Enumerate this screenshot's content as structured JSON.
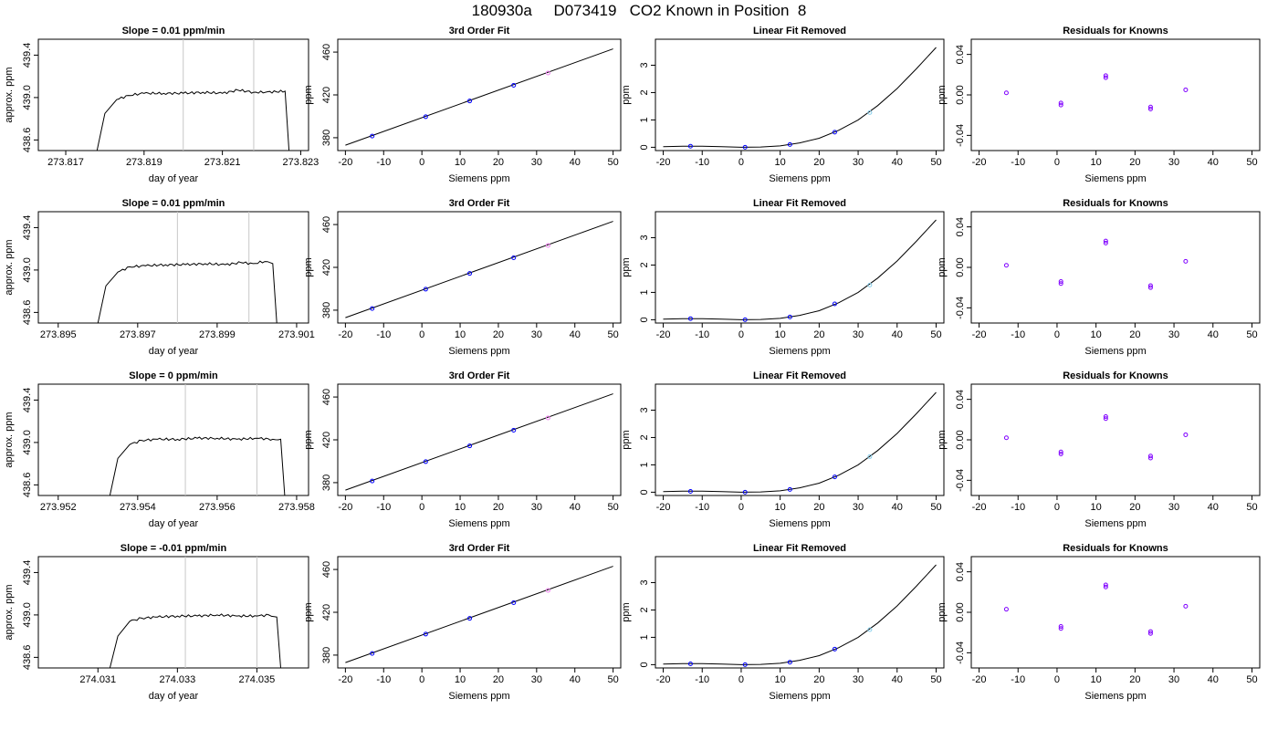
{
  "page": {
    "title": "180930a     D073419   CO2 Known in Position  8"
  },
  "colors": {
    "axis": "#000000",
    "curve": "#000000",
    "vline": "#c8c8c8",
    "point_main": "#0000ff",
    "point_alt": "#ee82ee",
    "point_light": "#87ceeb",
    "resid_point": "#7f00ff"
  },
  "chart_data": [
    {
      "type": "line",
      "row": 1,
      "panel": "timeseries",
      "title": "Slope =  0.01  ppm/min",
      "xlabel": "day of year",
      "ylabel": "approx. ppm",
      "xlim": [
        273.8163,
        273.8232
      ],
      "ylim": [
        438.5,
        439.55
      ],
      "xticks": [
        273.817,
        273.819,
        273.821,
        273.823
      ],
      "yticks": [
        438.6,
        439.0,
        439.4
      ],
      "vlines": [
        273.82,
        273.8218
      ],
      "x": [
        273.8178,
        273.818,
        273.8183,
        273.8186,
        273.819,
        273.8195,
        273.82,
        273.8205,
        273.821,
        273.8214,
        273.8218,
        273.8221,
        273.8226,
        273.8227
      ],
      "y": [
        438.5,
        438.85,
        438.98,
        439.02,
        439.04,
        439.04,
        439.04,
        439.05,
        439.04,
        439.07,
        439.05,
        439.05,
        439.06,
        438.5
      ]
    },
    {
      "type": "scatter",
      "row": 1,
      "panel": "fit",
      "title": "3rd Order Fit",
      "xlabel": "Siemens ppm",
      "ylabel": "ppm",
      "xlim": [
        -22,
        52
      ],
      "ylim": [
        368,
        472
      ],
      "xticks": [
        -20,
        -10,
        0,
        10,
        20,
        30,
        40,
        50
      ],
      "yticks": [
        380,
        420,
        460
      ],
      "line_x": [
        -20,
        50
      ],
      "line_y": [
        373,
        463
      ],
      "x": [
        -13,
        1,
        12.5,
        24,
        33
      ],
      "y": [
        381.5,
        399.6,
        414.3,
        429.0,
        440.5
      ]
    },
    {
      "type": "scatter",
      "row": 1,
      "panel": "linear_removed",
      "title": "Linear Fit Removed",
      "xlabel": "Siemens ppm",
      "ylabel": "ppm",
      "xlim": [
        -22,
        52
      ],
      "ylim": [
        -0.12,
        3.95
      ],
      "xticks": [
        -20,
        -10,
        0,
        10,
        20,
        30,
        40,
        50
      ],
      "yticks": [
        0,
        1,
        2,
        3
      ],
      "curve_x": [
        -20,
        -15,
        -10,
        -5,
        0,
        5,
        10,
        15,
        20,
        25,
        30,
        35,
        40,
        45,
        50
      ],
      "curve_y": [
        0.02,
        0.04,
        0.04,
        0.02,
        0.0,
        0.01,
        0.05,
        0.16,
        0.33,
        0.62,
        1.0,
        1.52,
        2.15,
        2.88,
        3.65
      ],
      "x": [
        -13,
        1,
        12.5,
        24,
        33
      ],
      "y": [
        0.04,
        0.0,
        0.1,
        0.55,
        1.27
      ]
    },
    {
      "type": "scatter",
      "row": 1,
      "panel": "residuals",
      "title": "Residuals for Knowns",
      "xlabel": "Siemens ppm",
      "ylabel": "ppm",
      "xlim": [
        -22,
        52
      ],
      "ylim": [
        -0.055,
        0.055
      ],
      "xticks": [
        -20,
        -10,
        0,
        10,
        20,
        30,
        40,
        50
      ],
      "yticks": [
        -0.04,
        0.0,
        0.04
      ],
      "x": [
        -13,
        1,
        1,
        12.5,
        12.5,
        24,
        24,
        33
      ],
      "y": [
        0.002,
        -0.008,
        -0.01,
        0.017,
        0.019,
        -0.012,
        -0.014,
        0.005
      ]
    },
    {
      "type": "line",
      "row": 2,
      "panel": "timeseries",
      "title": "Slope =  0.01  ppm/min",
      "xlabel": "day of year",
      "ylabel": "approx. ppm",
      "xlim": [
        273.8945,
        273.9013
      ],
      "ylim": [
        438.5,
        439.55
      ],
      "xticks": [
        273.895,
        273.897,
        273.899,
        273.901
      ],
      "yticks": [
        438.6,
        439.0,
        439.4
      ],
      "vlines": [
        273.898,
        273.8998
      ],
      "x": [
        273.896,
        273.8962,
        273.8965,
        273.8968,
        273.8972,
        273.8977,
        273.8982,
        273.8987,
        273.8992,
        273.8996,
        273.8999,
        273.9002,
        273.9004,
        273.9005
      ],
      "y": [
        438.5,
        438.85,
        438.98,
        439.03,
        439.04,
        439.05,
        439.05,
        439.06,
        439.05,
        439.07,
        439.06,
        439.08,
        439.06,
        438.5
      ]
    },
    {
      "type": "scatter",
      "row": 2,
      "panel": "fit",
      "title": "3rd Order Fit",
      "xlabel": "Siemens ppm",
      "ylabel": "ppm",
      "xlim": [
        -22,
        52
      ],
      "ylim": [
        368,
        472
      ],
      "xticks": [
        -20,
        -10,
        0,
        10,
        20,
        30,
        40,
        50
      ],
      "yticks": [
        380,
        420,
        460
      ],
      "line_x": [
        -20,
        50
      ],
      "line_y": [
        373,
        463
      ],
      "x": [
        -13,
        1,
        12.5,
        24,
        33
      ],
      "y": [
        381.5,
        399.6,
        414.3,
        429.0,
        440.5
      ]
    },
    {
      "type": "scatter",
      "row": 2,
      "panel": "linear_removed",
      "title": "Linear Fit Removed",
      "xlabel": "Siemens ppm",
      "ylabel": "ppm",
      "xlim": [
        -22,
        52
      ],
      "ylim": [
        -0.12,
        3.95
      ],
      "xticks": [
        -20,
        -10,
        0,
        10,
        20,
        30,
        40,
        50
      ],
      "yticks": [
        0,
        1,
        2,
        3
      ],
      "curve_x": [
        -20,
        -15,
        -10,
        -5,
        0,
        5,
        10,
        15,
        20,
        25,
        30,
        35,
        40,
        45,
        50
      ],
      "curve_y": [
        0.02,
        0.04,
        0.04,
        0.02,
        0.0,
        0.01,
        0.05,
        0.16,
        0.33,
        0.62,
        1.0,
        1.52,
        2.15,
        2.88,
        3.65
      ],
      "x": [
        -13,
        1,
        12.5,
        24,
        33
      ],
      "y": [
        0.04,
        0.0,
        0.1,
        0.58,
        1.27
      ]
    },
    {
      "type": "scatter",
      "row": 2,
      "panel": "residuals",
      "title": "Residuals for Knowns",
      "xlabel": "Siemens ppm",
      "ylabel": "ppm",
      "xlim": [
        -22,
        52
      ],
      "ylim": [
        -0.055,
        0.055
      ],
      "xticks": [
        -20,
        -10,
        0,
        10,
        20,
        30,
        40,
        50
      ],
      "yticks": [
        -0.04,
        0.0,
        0.04
      ],
      "x": [
        -13,
        1,
        1,
        12.5,
        12.5,
        24,
        24,
        33
      ],
      "y": [
        0.002,
        -0.014,
        -0.016,
        0.024,
        0.026,
        -0.018,
        -0.02,
        0.006
      ]
    },
    {
      "type": "line",
      "row": 3,
      "panel": "timeseries",
      "title": "Slope =  0  ppm/min",
      "xlabel": "day of year",
      "ylabel": "approx. ppm",
      "xlim": [
        273.9515,
        273.9583
      ],
      "ylim": [
        438.5,
        439.55
      ],
      "xticks": [
        273.952,
        273.954,
        273.956,
        273.958
      ],
      "yticks": [
        438.6,
        439.0,
        439.4
      ],
      "vlines": [
        273.9552,
        273.957
      ],
      "x": [
        273.9533,
        273.9535,
        273.9538,
        273.9541,
        273.9545,
        273.955,
        273.9555,
        273.956,
        273.9565,
        273.957,
        273.9574,
        273.9576,
        273.9577
      ],
      "y": [
        438.5,
        438.85,
        438.98,
        439.02,
        439.03,
        439.03,
        439.04,
        439.04,
        439.03,
        439.04,
        439.03,
        439.03,
        438.5
      ]
    },
    {
      "type": "scatter",
      "row": 3,
      "panel": "fit",
      "title": "3rd Order Fit",
      "xlabel": "Siemens ppm",
      "ylabel": "ppm",
      "xlim": [
        -22,
        52
      ],
      "ylim": [
        368,
        472
      ],
      "xticks": [
        -20,
        -10,
        0,
        10,
        20,
        30,
        40,
        50
      ],
      "yticks": [
        380,
        420,
        460
      ],
      "line_x": [
        -20,
        50
      ],
      "line_y": [
        373,
        463
      ],
      "x": [
        -13,
        1,
        12.5,
        24,
        33
      ],
      "y": [
        381.5,
        399.6,
        414.3,
        429.0,
        440.5
      ]
    },
    {
      "type": "scatter",
      "row": 3,
      "panel": "linear_removed",
      "title": "Linear Fit Removed",
      "xlabel": "Siemens ppm",
      "ylabel": "ppm",
      "xlim": [
        -22,
        52
      ],
      "ylim": [
        -0.12,
        3.95
      ],
      "xticks": [
        -20,
        -10,
        0,
        10,
        20,
        30,
        40,
        50
      ],
      "yticks": [
        0,
        1,
        2,
        3
      ],
      "curve_x": [
        -20,
        -15,
        -10,
        -5,
        0,
        5,
        10,
        15,
        20,
        25,
        30,
        35,
        40,
        45,
        50
      ],
      "curve_y": [
        0.02,
        0.04,
        0.04,
        0.02,
        0.0,
        0.01,
        0.05,
        0.16,
        0.33,
        0.62,
        1.0,
        1.52,
        2.15,
        2.88,
        3.65
      ],
      "x": [
        -13,
        1,
        12.5,
        24,
        33
      ],
      "y": [
        0.03,
        0.0,
        0.1,
        0.56,
        1.3
      ]
    },
    {
      "type": "scatter",
      "row": 3,
      "panel": "residuals",
      "title": "Residuals for Knowns",
      "xlabel": "Siemens ppm",
      "ylabel": "ppm",
      "xlim": [
        -22,
        52
      ],
      "ylim": [
        -0.055,
        0.055
      ],
      "xticks": [
        -20,
        -10,
        0,
        10,
        20,
        30,
        40,
        50
      ],
      "yticks": [
        -0.04,
        0.0,
        0.04
      ],
      "x": [
        -13,
        1,
        1,
        12.5,
        12.5,
        24,
        24,
        33
      ],
      "y": [
        0.002,
        -0.012,
        -0.014,
        0.021,
        0.023,
        -0.016,
        -0.018,
        0.005
      ]
    },
    {
      "type": "line",
      "row": 4,
      "panel": "timeseries",
      "title": "Slope =  -0.01  ppm/min",
      "xlabel": "day of year",
      "ylabel": "approx. ppm",
      "xlim": [
        274.0295,
        274.0363
      ],
      "ylim": [
        438.5,
        439.55
      ],
      "xticks": [
        274.031,
        274.033,
        274.035
      ],
      "yticks": [
        438.6,
        439.0,
        439.4
      ],
      "vlines": [
        274.0332,
        274.035
      ],
      "x": [
        274.0313,
        274.0315,
        274.0318,
        274.0321,
        274.0325,
        274.033,
        274.0335,
        274.034,
        274.0345,
        274.035,
        274.0353,
        274.0355,
        274.0356
      ],
      "y": [
        438.5,
        438.8,
        438.94,
        438.97,
        438.98,
        438.99,
        438.99,
        439.0,
        438.99,
        438.99,
        439.0,
        438.98,
        438.5
      ]
    },
    {
      "type": "scatter",
      "row": 4,
      "panel": "fit",
      "title": "3rd Order Fit",
      "xlabel": "Siemens ppm",
      "ylabel": "ppm",
      "xlim": [
        -22,
        52
      ],
      "ylim": [
        368,
        472
      ],
      "xticks": [
        -20,
        -10,
        0,
        10,
        20,
        30,
        40,
        50
      ],
      "yticks": [
        380,
        420,
        460
      ],
      "line_x": [
        -20,
        50
      ],
      "line_y": [
        373,
        463
      ],
      "x": [
        -13,
        1,
        12.5,
        24,
        33
      ],
      "y": [
        381.5,
        399.6,
        414.3,
        429.0,
        440.5
      ]
    },
    {
      "type": "scatter",
      "row": 4,
      "panel": "linear_removed",
      "title": "Linear Fit Removed",
      "xlabel": "Siemens ppm",
      "ylabel": "ppm",
      "xlim": [
        -22,
        52
      ],
      "ylim": [
        -0.12,
        3.95
      ],
      "xticks": [
        -20,
        -10,
        0,
        10,
        20,
        30,
        40,
        50
      ],
      "yticks": [
        0,
        1,
        2,
        3
      ],
      "curve_x": [
        -20,
        -15,
        -10,
        -5,
        0,
        5,
        10,
        15,
        20,
        25,
        30,
        35,
        40,
        45,
        50
      ],
      "curve_y": [
        0.02,
        0.04,
        0.04,
        0.02,
        0.0,
        0.01,
        0.05,
        0.16,
        0.33,
        0.62,
        1.0,
        1.52,
        2.15,
        2.88,
        3.65
      ],
      "x": [
        -13,
        1,
        12.5,
        24,
        33
      ],
      "y": [
        0.03,
        0.0,
        0.09,
        0.57,
        1.28
      ]
    },
    {
      "type": "scatter",
      "row": 4,
      "panel": "residuals",
      "title": "Residuals for Knowns",
      "xlabel": "Siemens ppm",
      "ylabel": "ppm",
      "xlim": [
        -22,
        52
      ],
      "ylim": [
        -0.055,
        0.055
      ],
      "xticks": [
        -20,
        -10,
        0,
        10,
        20,
        30,
        40,
        50
      ],
      "yticks": [
        -0.04,
        0.0,
        0.04
      ],
      "x": [
        -13,
        1,
        1,
        12.5,
        12.5,
        24,
        24,
        33
      ],
      "y": [
        0.003,
        -0.014,
        -0.016,
        0.025,
        0.027,
        -0.019,
        -0.021,
        0.006
      ]
    }
  ]
}
